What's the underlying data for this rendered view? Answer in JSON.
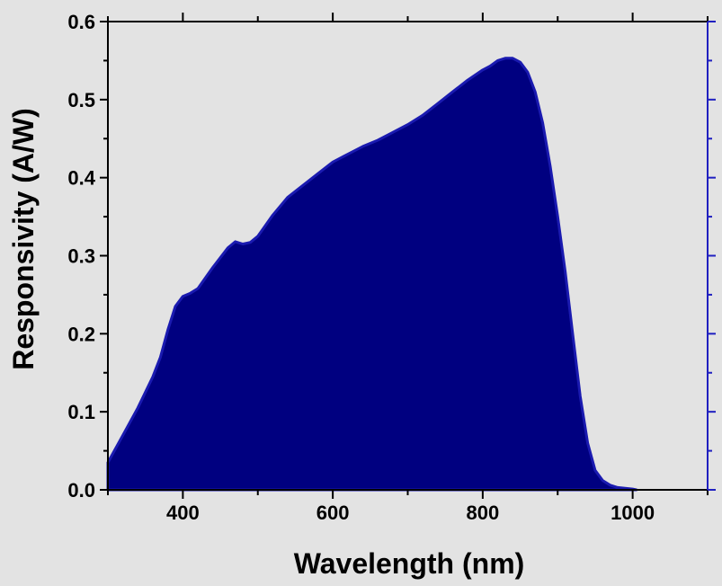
{
  "chart_data": {
    "type": "area",
    "title": "",
    "xlabel": "Wavelength (nm)",
    "ylabel": "Responsivity (A/W)",
    "xlim": [
      300,
      1100
    ],
    "ylim": [
      0,
      0.6
    ],
    "x_ticks": [
      400,
      600,
      800,
      1000
    ],
    "x_tick_labels": [
      "400",
      "600",
      "800",
      "1000"
    ],
    "y_ticks": [
      0.0,
      0.1,
      0.2,
      0.3,
      0.4,
      0.5,
      0.6
    ],
    "y_tick_labels": [
      "0.0",
      "0.1",
      "0.2",
      "0.3",
      "0.4",
      "0.5",
      "0.6"
    ],
    "grid": false,
    "legend": "none",
    "colors": {
      "fill": "#000080",
      "stroke": "#1a1ab0",
      "right_axis": "#2020c0",
      "axis": "#000000",
      "background": "#e3e3e3"
    },
    "x": [
      300,
      320,
      340,
      360,
      370,
      380,
      390,
      400,
      410,
      420,
      440,
      460,
      470,
      480,
      490,
      500,
      520,
      540,
      560,
      580,
      600,
      620,
      640,
      660,
      680,
      700,
      720,
      740,
      760,
      780,
      800,
      810,
      820,
      830,
      840,
      850,
      860,
      870,
      880,
      890,
      900,
      910,
      920,
      930,
      940,
      950,
      960,
      970,
      980,
      990,
      1000,
      1005
    ],
    "y": [
      0.035,
      0.07,
      0.105,
      0.145,
      0.17,
      0.205,
      0.235,
      0.248,
      0.252,
      0.258,
      0.285,
      0.31,
      0.318,
      0.315,
      0.317,
      0.325,
      0.352,
      0.375,
      0.39,
      0.405,
      0.42,
      0.43,
      0.44,
      0.448,
      0.458,
      0.468,
      0.48,
      0.495,
      0.51,
      0.525,
      0.538,
      0.543,
      0.55,
      0.553,
      0.553,
      0.548,
      0.535,
      0.51,
      0.47,
      0.415,
      0.35,
      0.28,
      0.2,
      0.12,
      0.06,
      0.025,
      0.012,
      0.006,
      0.003,
      0.002,
      0.001,
      0.0
    ]
  }
}
